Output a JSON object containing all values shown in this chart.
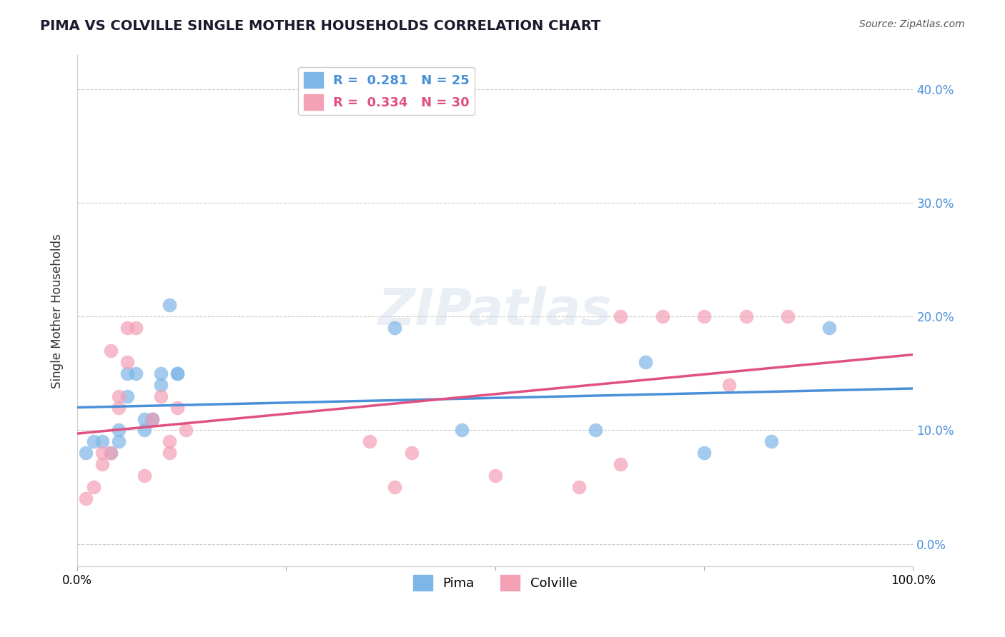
{
  "title": "PIMA VS COLVILLE SINGLE MOTHER HOUSEHOLDS CORRELATION CHART",
  "source": "Source: ZipAtlas.com",
  "ylabel": "Single Mother Households",
  "xlim": [
    0,
    100
  ],
  "ylim": [
    -2,
    43
  ],
  "yticks": [
    0,
    10,
    20,
    30,
    40
  ],
  "ytick_labels": [
    "0.0%",
    "10.0%",
    "20.0%",
    "30.0%",
    "40.0%"
  ],
  "xticks": [
    0,
    25,
    50,
    75,
    100
  ],
  "xtick_labels": [
    "0.0%",
    "",
    "",
    "",
    "100.0%"
  ],
  "background_color": "#ffffff",
  "grid_color": "#cccccc",
  "watermark": "ZIPatlas",
  "pima_color": "#7EB6E8",
  "colville_color": "#F4A0B5",
  "pima_line_color": "#4A90D9",
  "colville_line_color": "#E05080",
  "pima_R": 0.281,
  "pima_N": 25,
  "colville_R": 0.334,
  "colville_N": 30,
  "pima_x": [
    1,
    2,
    3,
    4,
    5,
    5,
    6,
    6,
    7,
    8,
    8,
    9,
    9,
    10,
    10,
    11,
    12,
    12,
    38,
    46,
    62,
    68,
    75,
    83,
    90
  ],
  "pima_y": [
    8,
    9,
    9,
    8,
    10,
    9,
    13,
    15,
    15,
    10,
    11,
    11,
    11,
    14,
    15,
    21,
    15,
    15,
    19,
    10,
    10,
    16,
    8,
    9,
    19
  ],
  "colville_x": [
    1,
    2,
    3,
    3,
    4,
    4,
    5,
    5,
    6,
    6,
    7,
    8,
    9,
    10,
    11,
    11,
    12,
    13,
    35,
    38,
    40,
    50,
    60,
    65,
    65,
    70,
    75,
    78,
    80,
    85
  ],
  "colville_y": [
    4,
    5,
    7,
    8,
    8,
    17,
    12,
    13,
    16,
    19,
    19,
    6,
    11,
    13,
    9,
    8,
    12,
    10,
    9,
    5,
    8,
    6,
    5,
    7,
    20,
    20,
    20,
    14,
    20,
    20
  ]
}
